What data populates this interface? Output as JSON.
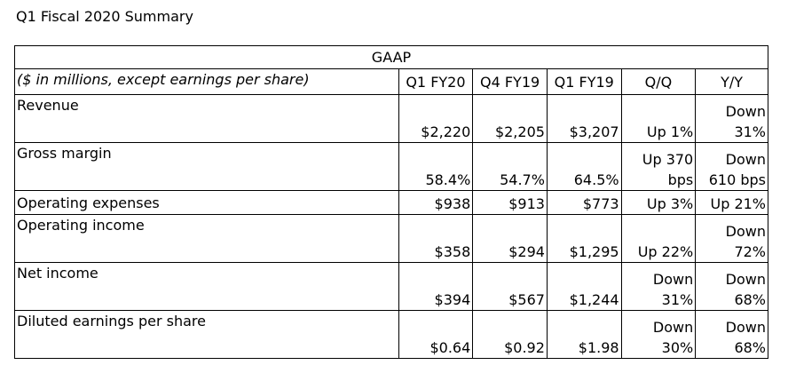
{
  "title": "Q1 Fiscal 2020 Summary",
  "table": {
    "section": "GAAP",
    "header_label": "($ in millions, except earnings per share)",
    "columns": [
      "Q1 FY20",
      "Q4 FY19",
      "Q1 FY19",
      "Q/Q",
      "Y/Y"
    ],
    "rows": [
      {
        "label": "Revenue",
        "q1fy20": "$2,220",
        "q4fy19": "$2,205",
        "q1fy19": "$3,207",
        "qq": "Up 1%",
        "yy": "Down 31%"
      },
      {
        "label": "Gross margin",
        "q1fy20": "58.4%",
        "q4fy19": "54.7%",
        "q1fy19": "64.5%",
        "qq": "Up 370 bps",
        "yy": "Down 610 bps"
      },
      {
        "label": "Operating expenses",
        "q1fy20": "$938",
        "q4fy19": "$913",
        "q1fy19": "$773",
        "qq": "Up 3%",
        "yy": "Up 21%"
      },
      {
        "label": "Operating income",
        "q1fy20": "$358",
        "q4fy19": "$294",
        "q1fy19": "$1,295",
        "qq": "Up 22%",
        "yy": "Down 72%"
      },
      {
        "label": "Net income",
        "q1fy20": "$394",
        "q4fy19": "$567",
        "q1fy19": "$1,244",
        "qq": "Down 31%",
        "yy": "Down 68%"
      },
      {
        "label": "Diluted earnings per share",
        "q1fy20": "$0.64",
        "q4fy19": "$0.92",
        "q1fy19": "$1.98",
        "qq": "Down 30%",
        "yy": "Down 68%"
      }
    ]
  }
}
